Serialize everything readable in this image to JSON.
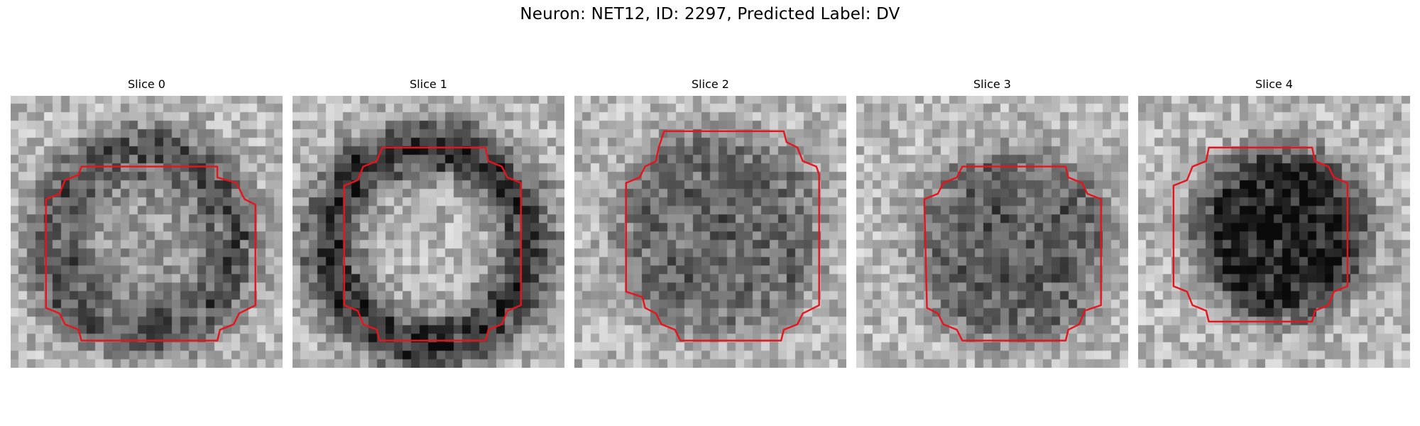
{
  "figure": {
    "title": "Neuron: NET12, ID: 2297, Predicted Label: DV"
  },
  "colors": {
    "contour": "#e8141c",
    "background": "#ffffff"
  },
  "image": {
    "grid_size": 32,
    "colormap": "grayscale"
  },
  "slices": [
    {
      "title": "Slice 0",
      "style": "ring",
      "ring_radius": 0.34,
      "ring_width": 0.1,
      "ring_strength": 0.42,
      "center_darkness": 0.12,
      "center": [
        0.49,
        0.54
      ],
      "contour": [
        [
          0.26,
          0.26
        ],
        [
          0.76,
          0.26
        ],
        [
          0.76,
          0.3
        ],
        [
          0.83,
          0.32
        ],
        [
          0.86,
          0.38
        ],
        [
          0.9,
          0.4
        ],
        [
          0.9,
          0.77
        ],
        [
          0.84,
          0.8
        ],
        [
          0.82,
          0.84
        ],
        [
          0.77,
          0.86
        ],
        [
          0.76,
          0.9
        ],
        [
          0.26,
          0.9
        ],
        [
          0.25,
          0.86
        ],
        [
          0.2,
          0.84
        ],
        [
          0.18,
          0.8
        ],
        [
          0.13,
          0.78
        ],
        [
          0.13,
          0.38
        ],
        [
          0.18,
          0.36
        ],
        [
          0.2,
          0.31
        ],
        [
          0.25,
          0.29
        ]
      ]
    },
    {
      "title": "Slice 1",
      "style": "ring",
      "ring_radius": 0.36,
      "ring_width": 0.11,
      "ring_strength": 0.55,
      "center_darkness": 0.0,
      "center": [
        0.5,
        0.55
      ],
      "contour": [
        [
          0.33,
          0.19
        ],
        [
          0.71,
          0.19
        ],
        [
          0.72,
          0.24
        ],
        [
          0.77,
          0.26
        ],
        [
          0.79,
          0.3
        ],
        [
          0.84,
          0.32
        ],
        [
          0.84,
          0.77
        ],
        [
          0.79,
          0.79
        ],
        [
          0.77,
          0.84
        ],
        [
          0.72,
          0.86
        ],
        [
          0.71,
          0.9
        ],
        [
          0.32,
          0.9
        ],
        [
          0.31,
          0.86
        ],
        [
          0.26,
          0.84
        ],
        [
          0.24,
          0.79
        ],
        [
          0.19,
          0.77
        ],
        [
          0.19,
          0.33
        ],
        [
          0.24,
          0.31
        ],
        [
          0.26,
          0.26
        ],
        [
          0.31,
          0.24
        ]
      ]
    },
    {
      "title": "Slice 2",
      "style": "disk",
      "disk_radius": 0.38,
      "disk_strength": 0.32,
      "center": [
        0.53,
        0.5
      ],
      "contour": [
        [
          0.33,
          0.13
        ],
        [
          0.77,
          0.13
        ],
        [
          0.78,
          0.17
        ],
        [
          0.82,
          0.19
        ],
        [
          0.84,
          0.24
        ],
        [
          0.89,
          0.26
        ],
        [
          0.9,
          0.29
        ],
        [
          0.9,
          0.77
        ],
        [
          0.84,
          0.8
        ],
        [
          0.82,
          0.84
        ],
        [
          0.77,
          0.86
        ],
        [
          0.76,
          0.9
        ],
        [
          0.39,
          0.9
        ],
        [
          0.37,
          0.86
        ],
        [
          0.32,
          0.84
        ],
        [
          0.3,
          0.8
        ],
        [
          0.26,
          0.78
        ],
        [
          0.25,
          0.74
        ],
        [
          0.19,
          0.72
        ],
        [
          0.19,
          0.32
        ],
        [
          0.24,
          0.3
        ],
        [
          0.26,
          0.26
        ],
        [
          0.3,
          0.24
        ],
        [
          0.31,
          0.19
        ]
      ]
    },
    {
      "title": "Slice 3",
      "style": "disk",
      "disk_radius": 0.36,
      "disk_strength": 0.34,
      "center": [
        0.58,
        0.55
      ],
      "contour": [
        [
          0.39,
          0.26
        ],
        [
          0.77,
          0.26
        ],
        [
          0.78,
          0.3
        ],
        [
          0.83,
          0.32
        ],
        [
          0.85,
          0.36
        ],
        [
          0.9,
          0.38
        ],
        [
          0.9,
          0.77
        ],
        [
          0.84,
          0.79
        ],
        [
          0.82,
          0.84
        ],
        [
          0.78,
          0.86
        ],
        [
          0.77,
          0.9
        ],
        [
          0.39,
          0.9
        ],
        [
          0.37,
          0.86
        ],
        [
          0.32,
          0.84
        ],
        [
          0.3,
          0.8
        ],
        [
          0.26,
          0.78
        ],
        [
          0.25,
          0.38
        ],
        [
          0.3,
          0.36
        ],
        [
          0.32,
          0.32
        ],
        [
          0.37,
          0.3
        ]
      ]
    },
    {
      "title": "Slice 4",
      "style": "disk",
      "disk_radius": 0.31,
      "disk_strength": 0.62,
      "center": [
        0.53,
        0.51
      ],
      "contour": [
        [
          0.26,
          0.19
        ],
        [
          0.64,
          0.19
        ],
        [
          0.65,
          0.24
        ],
        [
          0.7,
          0.26
        ],
        [
          0.72,
          0.3
        ],
        [
          0.77,
          0.32
        ],
        [
          0.77,
          0.7
        ],
        [
          0.72,
          0.72
        ],
        [
          0.7,
          0.77
        ],
        [
          0.65,
          0.79
        ],
        [
          0.64,
          0.83
        ],
        [
          0.26,
          0.83
        ],
        [
          0.25,
          0.79
        ],
        [
          0.2,
          0.77
        ],
        [
          0.18,
          0.72
        ],
        [
          0.13,
          0.7
        ],
        [
          0.13,
          0.33
        ],
        [
          0.18,
          0.31
        ],
        [
          0.2,
          0.26
        ],
        [
          0.25,
          0.24
        ]
      ]
    }
  ]
}
